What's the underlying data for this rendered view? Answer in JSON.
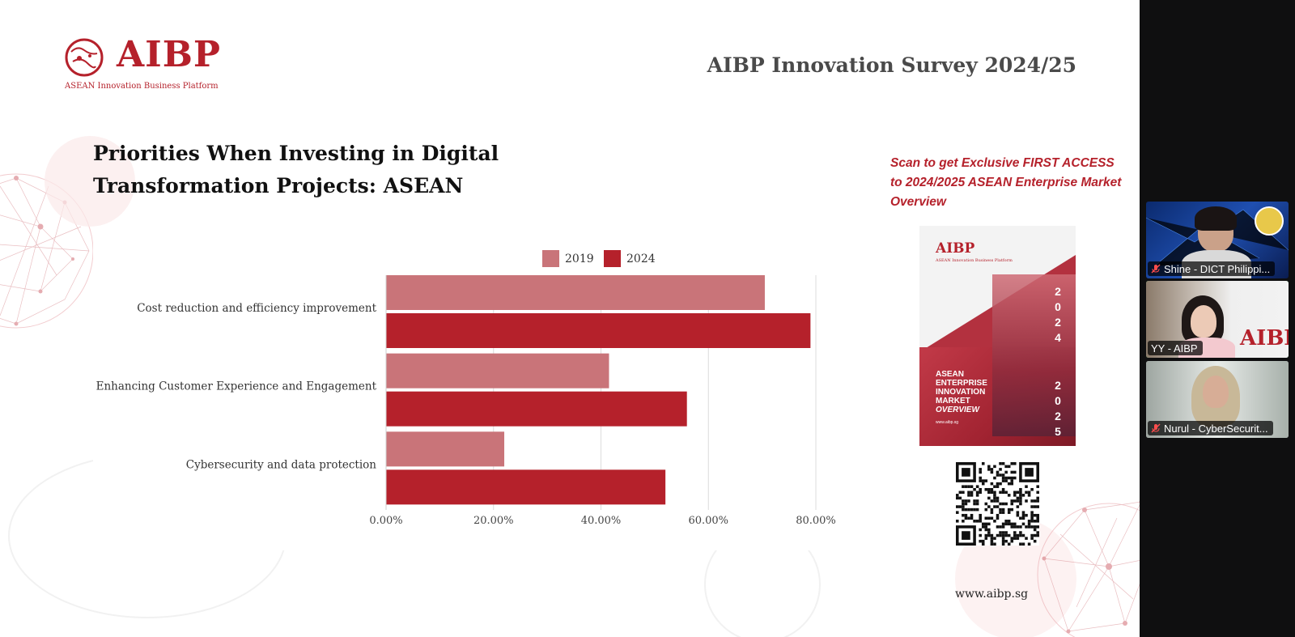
{
  "slide": {
    "logo_text": "AIBP",
    "logo_subtitle": "ASEAN Innovation Business Platform",
    "survey_title": "AIBP Innovation Survey 2024/25",
    "chart_title_line1": "Priorities When Investing in Digital",
    "chart_title_line2": "Transformation Projects: ASEAN",
    "scan_text": "Scan to get Exclusive FIRST ACCESS to 2024/2025 ASEAN Enterprise Market Overview",
    "website": "www.aibp.sg",
    "cover": {
      "logo": "AIBP",
      "subtitle": "ASEAN Innovation Business Platform",
      "heading": [
        "ASEAN",
        "ENTERPRISE",
        "INNOVATION",
        "MARKET"
      ],
      "heading_italic": "OVERVIEW",
      "year_top": [
        "2",
        "0",
        "2",
        "4"
      ],
      "year_bottom": [
        "2",
        "0",
        "2",
        "5"
      ],
      "url": "www.aibp.sg"
    },
    "colors": {
      "brand": "#b5212b",
      "series_2019": "#c97479",
      "series_2024": "#b5212b"
    }
  },
  "chart_data": {
    "type": "bar",
    "orientation": "horizontal",
    "categories": [
      "Cost reduction and efficiency improvement",
      "Enhancing Customer Experience and Engagement",
      "Cybersecurity and data protection"
    ],
    "series": [
      {
        "name": "2019",
        "values": [
          70.5,
          41.5,
          22.0
        ],
        "color": "#c97479"
      },
      {
        "name": "2024",
        "values": [
          79.0,
          56.0,
          52.0
        ],
        "color": "#b5212b"
      }
    ],
    "xticks": [
      "0.00%",
      "20.00%",
      "40.00%",
      "60.00%",
      "80.00%"
    ],
    "xlim": [
      0,
      80
    ],
    "grid": true,
    "legend": "top-center"
  },
  "participants": [
    {
      "name": "Shine - DICT Philippi...",
      "muted": true,
      "active": false
    },
    {
      "name": "YY - AIBP",
      "muted": false,
      "active": true
    },
    {
      "name": "Nurul - CyberSecurit...",
      "muted": true,
      "active": false
    }
  ]
}
